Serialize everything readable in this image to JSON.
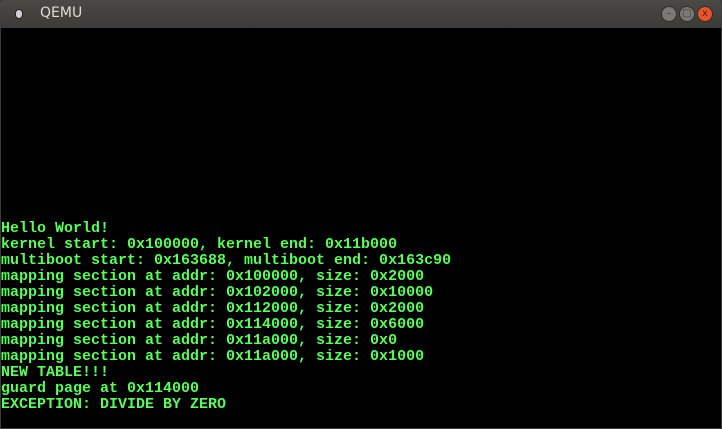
{
  "window": {
    "title": "QEMU",
    "minimize": "–",
    "maximize": "□",
    "close": "x"
  },
  "console": {
    "color": "#55ff55",
    "lines": [
      "Hello World!",
      "kernel start: 0x100000, kernel end: 0x11b000",
      "multiboot start: 0x163688, multiboot end: 0x163c90",
      "mapping section at addr: 0x100000, size: 0x2000",
      "mapping section at addr: 0x102000, size: 0x10000",
      "mapping section at addr: 0x112000, size: 0x2000",
      "mapping section at addr: 0x114000, size: 0x6000",
      "mapping section at addr: 0x11a000, size: 0x0",
      "mapping section at addr: 0x11a000, size: 0x1000",
      "NEW TABLE!!!",
      "guard page at 0x114000",
      "EXCEPTION: DIVIDE BY ZERO"
    ]
  }
}
